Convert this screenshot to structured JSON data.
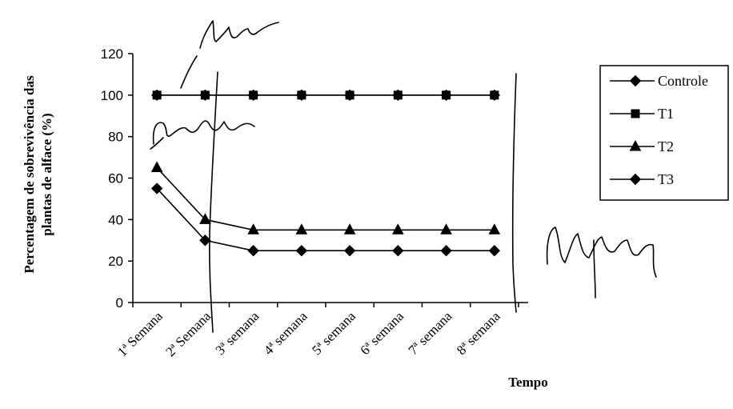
{
  "chart_data": {
    "type": "line",
    "categories": [
      "1ª Semana",
      "2ª Semana",
      "3ª semana",
      "4ª semana",
      "5ª semana",
      "6ª semana",
      "7ª semana",
      "8ª semana"
    ],
    "series": [
      {
        "name": "Controle",
        "marker": "diamond",
        "values": [
          100,
          100,
          100,
          100,
          100,
          100,
          100,
          100
        ]
      },
      {
        "name": "T1",
        "marker": "square",
        "values": [
          100,
          100,
          100,
          100,
          100,
          100,
          100,
          100
        ]
      },
      {
        "name": "T2",
        "marker": "triangle",
        "values": [
          65,
          40,
          35,
          35,
          35,
          35,
          35,
          35
        ]
      },
      {
        "name": "T3",
        "marker": "diamond",
        "values": [
          55,
          30,
          25,
          25,
          25,
          25,
          25,
          25
        ]
      }
    ],
    "xlabel": "Tempo",
    "ylabel_line1": "Percentagem de sobrevivência das",
    "ylabel_line2": "plantas de alface (%)",
    "ylim": [
      0,
      120
    ],
    "yticks": [
      0,
      20,
      40,
      60,
      80,
      100,
      120
    ],
    "grid": false,
    "legend_position": "right"
  },
  "annotations": {
    "fase_label": "fase Calme",
    "alarme_label": "alarme",
    "adaptacao_label": "Adaptação"
  },
  "colors": {
    "ink": "#000000",
    "background": "#ffffff"
  }
}
